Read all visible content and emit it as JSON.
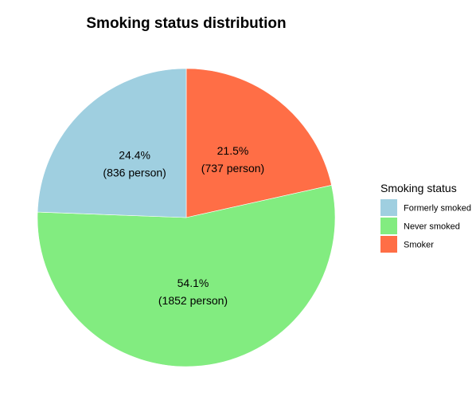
{
  "chart_data": {
    "type": "pie",
    "title": "Smoking status distribution",
    "legend_title": "Smoking status",
    "legend_position": "right",
    "slices": [
      {
        "name": "Formerly smoked",
        "percent_label": "24.4%",
        "count_label": "(836 person)",
        "count": 836,
        "color": "#9FCFE0"
      },
      {
        "name": "Never smoked",
        "percent_label": "54.1%",
        "count_label": "(1852 person)",
        "count": 1852,
        "color": "#82EC80"
      },
      {
        "name": "Smoker",
        "percent_label": "21.5%",
        "count_label": "(737 person)",
        "count": 737,
        "color": "#FF6E46"
      }
    ],
    "draw_order": [
      "Smoker",
      "Never smoked",
      "Formerly smoked"
    ],
    "start": "12 o'clock",
    "direction": "clockwise"
  }
}
